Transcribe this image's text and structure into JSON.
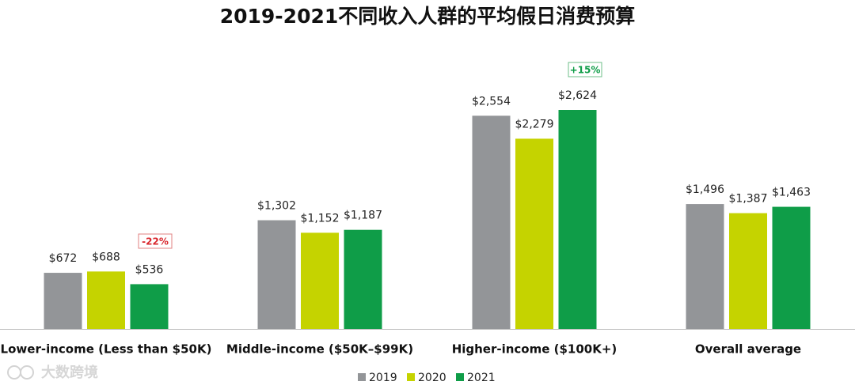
{
  "chart_data": {
    "type": "bar",
    "title": "2019-2021不同收入人群的平均假日消费预算",
    "categories": [
      "Lower-income (Less than $50K)",
      "Middle-income ($50K–$99K)",
      "Higher-income ($100K+)",
      "Overall average"
    ],
    "series": [
      {
        "name": "2019",
        "color": "#939598",
        "values": [
          672,
          1302,
          2554,
          1496
        ],
        "value_labels": [
          "$672",
          "$1,302",
          "$2,554",
          "$1,496"
        ]
      },
      {
        "name": "2020",
        "color": "#c5d300",
        "values": [
          688,
          1152,
          2279,
          1387
        ],
        "value_labels": [
          "$688",
          "$1,152",
          "$2,279",
          "$1,387"
        ]
      },
      {
        "name": "2021",
        "color": "#0f9d48",
        "values": [
          536,
          1187,
          2624,
          1463
        ],
        "value_labels": [
          "$536",
          "$1,187",
          "$2,624",
          "$1,463"
        ]
      }
    ],
    "annotations": [
      "-22%",
      "+15%"
    ],
    "watermark": "大数跨境"
  }
}
